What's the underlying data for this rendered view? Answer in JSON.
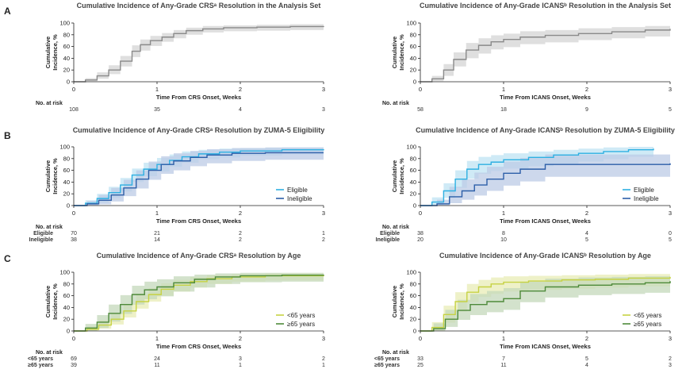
{
  "panel_letters": [
    "A",
    "B",
    "C"
  ],
  "colors": {
    "gray": "#8a8a8a",
    "gray_band": "#d4d4d4",
    "light_blue": "#2eb0e2",
    "light_blue_band": "#bfe3f3",
    "dark_blue": "#2c5ea8",
    "dark_blue_band": "#bccbe6",
    "yellow_green": "#c6d243",
    "yellow_green_band": "#e8ecb6",
    "dark_green": "#4e8a3a",
    "dark_green_band": "#c4d8bb"
  },
  "chart_data": [
    {
      "id": "A-CRS",
      "type": "line",
      "panel": "A",
      "title": "Cumulative Incidence of Any-Grade CRSᵃ Resolution in the Analysis Set",
      "xlabel": "Time From CRS Onset, Weeks",
      "ylabel": "Cumulative Incidence, %",
      "xlim": [
        0,
        3
      ],
      "ylim": [
        0,
        100
      ],
      "xticks": [
        "0",
        "1",
        "2",
        "3"
      ],
      "yticks": [
        "0",
        "20",
        "40",
        "60",
        "80",
        "100"
      ],
      "risk_header": "No. at risk",
      "risk_rows": [
        {
          "label": "",
          "color": "#333333",
          "values": [
            "108",
            "35",
            "4",
            "3"
          ]
        }
      ],
      "series": [
        {
          "color": "#8a8a8a",
          "band": "#d4d4d4",
          "x": [
            0,
            0.14,
            0.28,
            0.42,
            0.56,
            0.7,
            0.8,
            0.92,
            1.06,
            1.2,
            1.35,
            1.55,
            1.8,
            2.2,
            2.6,
            3.0
          ],
          "y": [
            0,
            3,
            10,
            20,
            35,
            52,
            63,
            70,
            76,
            82,
            87,
            90,
            92,
            93,
            94,
            95
          ],
          "lo": [
            0,
            1,
            5,
            13,
            26,
            42,
            53,
            61,
            68,
            74,
            80,
            84,
            86,
            87,
            88,
            89
          ],
          "hi": [
            0,
            6,
            16,
            28,
            44,
            62,
            72,
            78,
            83,
            88,
            92,
            95,
            96,
            97,
            98,
            98
          ]
        }
      ]
    },
    {
      "id": "A-ICANS",
      "type": "line",
      "panel": "A",
      "title": "Cumulative Incidence of Any-Grade ICANSᵇ Resolution in the Analysis Set",
      "xlabel": "Time From ICANS Onset, Weeks",
      "ylabel": "Cumulative Incidence, %",
      "xlim": [
        0,
        3
      ],
      "ylim": [
        0,
        100
      ],
      "xticks": [
        "0",
        "1",
        "2",
        "3"
      ],
      "yticks": [
        "0",
        "20",
        "40",
        "60",
        "80",
        "100"
      ],
      "risk_header": "No. at risk",
      "risk_rows": [
        {
          "label": "",
          "color": "#333333",
          "values": [
            "58",
            "18",
            "9",
            "5"
          ]
        }
      ],
      "series": [
        {
          "color": "#8a8a8a",
          "band": "#d4d4d4",
          "x": [
            0,
            0.14,
            0.28,
            0.4,
            0.55,
            0.7,
            0.85,
            1.0,
            1.2,
            1.5,
            1.9,
            2.3,
            2.7,
            3.0
          ],
          "y": [
            0,
            5,
            20,
            38,
            54,
            62,
            68,
            72,
            76,
            79,
            82,
            85,
            88,
            90
          ],
          "lo": [
            0,
            1,
            10,
            26,
            40,
            48,
            55,
            59,
            64,
            67,
            71,
            74,
            77,
            79
          ],
          "hi": [
            0,
            10,
            30,
            50,
            66,
            74,
            79,
            82,
            86,
            88,
            91,
            93,
            95,
            96
          ]
        }
      ]
    },
    {
      "id": "B-CRS",
      "type": "line",
      "panel": "B",
      "title": "Cumulative Incidence of Any-Grade CRSᵃ Resolution by ZUMA-5 Eligibility",
      "xlabel": "Time From CRS Onset, Weeks",
      "ylabel": "Cumulative Incidence, %",
      "xlim": [
        0,
        3
      ],
      "ylim": [
        0,
        100
      ],
      "xticks": [
        "0",
        "1",
        "2",
        "3"
      ],
      "yticks": [
        "0",
        "20",
        "40",
        "60",
        "80",
        "100"
      ],
      "legend": [
        "Eligible",
        "Ineligible"
      ],
      "risk_header": "No. at risk",
      "risk_rows": [
        {
          "label": "Eligible",
          "color": "#2eb0e2",
          "values": [
            "70",
            "21",
            "2",
            "1"
          ]
        },
        {
          "label": "Ineligible",
          "color": "#2c5ea8",
          "values": [
            "38",
            "14",
            "2",
            "2"
          ]
        }
      ],
      "series": [
        {
          "name": "Eligible",
          "color": "#2eb0e2",
          "band": "#bfe3f3",
          "x": [
            0,
            0.14,
            0.28,
            0.42,
            0.56,
            0.7,
            0.84,
            1.0,
            1.15,
            1.3,
            1.5,
            1.75,
            2.0,
            2.5,
            3.0
          ],
          "y": [
            0,
            4,
            12,
            22,
            35,
            52,
            62,
            70,
            77,
            83,
            88,
            91,
            93,
            95,
            96
          ],
          "lo": [
            0,
            1,
            5,
            13,
            24,
            40,
            50,
            58,
            66,
            73,
            79,
            82,
            85,
            87,
            88
          ],
          "hi": [
            0,
            9,
            20,
            32,
            47,
            63,
            73,
            81,
            87,
            92,
            95,
            97,
            98,
            99,
            99
          ]
        },
        {
          "name": "Ineligible",
          "color": "#2c5ea8",
          "band": "#bccbe6",
          "x": [
            0,
            0.16,
            0.3,
            0.45,
            0.6,
            0.75,
            0.9,
            1.05,
            1.2,
            1.4,
            1.6,
            1.9,
            2.3,
            3.0
          ],
          "y": [
            0,
            3,
            9,
            18,
            30,
            45,
            60,
            70,
            76,
            82,
            86,
            89,
            90,
            90
          ],
          "lo": [
            0,
            0,
            2,
            7,
            16,
            29,
            44,
            54,
            60,
            67,
            72,
            76,
            78,
            78
          ],
          "hi": [
            0,
            8,
            18,
            30,
            44,
            60,
            75,
            84,
            89,
            93,
            96,
            98,
            99,
            99
          ]
        }
      ]
    },
    {
      "id": "B-ICANS",
      "type": "line",
      "panel": "B",
      "title": "Cumulative Incidence of Any-Grade ICANSᵇ Resolution by ZUMA-5 Eligibility",
      "xlabel": "Time From ICANS Onset, Weeks",
      "ylabel": "Cumulative Incidence, %",
      "xlim": [
        0,
        3
      ],
      "ylim": [
        0,
        100
      ],
      "xticks": [
        "0",
        "1",
        "2",
        "3"
      ],
      "yticks": [
        "0",
        "20",
        "40",
        "60",
        "80",
        "100"
      ],
      "legend": [
        "Eligible",
        "Ineligible"
      ],
      "risk_header": "No. at risk",
      "risk_rows": [
        {
          "label": "Eligible",
          "color": "#2eb0e2",
          "values": [
            "38",
            "8",
            "4",
            "0"
          ]
        },
        {
          "label": "Ineligible",
          "color": "#2c5ea8",
          "values": [
            "20",
            "10",
            "5",
            "5"
          ]
        }
      ],
      "series": [
        {
          "name": "Eligible",
          "color": "#2eb0e2",
          "band": "#bfe3f3",
          "x": [
            0,
            0.14,
            0.28,
            0.42,
            0.56,
            0.7,
            0.85,
            1.0,
            1.3,
            1.6,
            1.9,
            2.2,
            2.5,
            2.8
          ],
          "y": [
            0,
            6,
            25,
            45,
            62,
            70,
            74,
            78,
            82,
            86,
            89,
            92,
            95,
            97
          ],
          "lo": [
            0,
            1,
            13,
            30,
            46,
            54,
            59,
            63,
            67,
            71,
            75,
            79,
            83,
            85
          ],
          "hi": [
            0,
            14,
            38,
            60,
            76,
            83,
            86,
            89,
            92,
            95,
            97,
            99,
            100,
            100
          ]
        },
        {
          "name": "Ineligible",
          "color": "#2c5ea8",
          "band": "#bccbe6",
          "x": [
            0,
            0.2,
            0.35,
            0.5,
            0.65,
            0.8,
            1.0,
            1.2,
            1.5,
            3.0
          ],
          "y": [
            0,
            3,
            15,
            25,
            35,
            45,
            55,
            62,
            70,
            72
          ],
          "lo": [
            0,
            0,
            4,
            10,
            17,
            25,
            34,
            41,
            49,
            51
          ],
          "hi": [
            0,
            10,
            32,
            45,
            56,
            66,
            75,
            81,
            87,
            88
          ]
        }
      ]
    },
    {
      "id": "C-CRS",
      "type": "line",
      "panel": "C",
      "title": "Cumulative Incidence of Any-Grade CRSᵃ Resolution by Age",
      "xlabel": "Time From CRS Onset, Weeks",
      "ylabel": "Cumulative Incidence, %",
      "xlim": [
        0,
        3
      ],
      "ylim": [
        0,
        100
      ],
      "xticks": [
        "0",
        "1",
        "2",
        "3"
      ],
      "yticks": [
        "0",
        "20",
        "40",
        "60",
        "80",
        "100"
      ],
      "legend": [
        "<65 years",
        "≥65 years"
      ],
      "risk_header": "No. at risk",
      "risk_rows": [
        {
          "label": "<65 years",
          "color": "#b4bf1f",
          "values": [
            "69",
            "24",
            "3",
            "2"
          ]
        },
        {
          "label": "≥65 years",
          "color": "#4e8a3a",
          "values": [
            "39",
            "11",
            "1",
            "1"
          ]
        }
      ],
      "series": [
        {
          "name": "<65 years",
          "color": "#c6d243",
          "band": "#e8ecb6",
          "x": [
            0,
            0.16,
            0.3,
            0.45,
            0.6,
            0.75,
            0.9,
            1.05,
            1.2,
            1.4,
            1.6,
            1.9,
            2.3,
            3.0
          ],
          "y": [
            0,
            3,
            10,
            20,
            34,
            50,
            62,
            71,
            78,
            84,
            89,
            92,
            94,
            95
          ],
          "lo": [
            0,
            0,
            4,
            11,
            23,
            38,
            50,
            60,
            67,
            74,
            80,
            84,
            86,
            87
          ],
          "hi": [
            0,
            8,
            18,
            30,
            46,
            62,
            73,
            81,
            87,
            92,
            95,
            97,
            98,
            99
          ]
        },
        {
          "name": "≥65 years",
          "color": "#4e8a3a",
          "band": "#c4d8bb",
          "x": [
            0,
            0.14,
            0.28,
            0.42,
            0.56,
            0.7,
            0.85,
            1.0,
            1.2,
            1.45,
            1.7,
            2.0,
            2.5,
            3.0
          ],
          "y": [
            0,
            5,
            15,
            30,
            45,
            62,
            70,
            75,
            82,
            88,
            92,
            94,
            95,
            96
          ],
          "lo": [
            0,
            0,
            5,
            16,
            29,
            45,
            54,
            59,
            67,
            74,
            80,
            83,
            84,
            85
          ],
          "hi": [
            0,
            12,
            27,
            45,
            61,
            77,
            84,
            88,
            93,
            96,
            98,
            99,
            99,
            99
          ]
        }
      ]
    },
    {
      "id": "C-ICANS",
      "type": "line",
      "panel": "C",
      "title": "Cumulative Incidence of Any-Grade ICANSᵇ Resolution by Age",
      "xlabel": "Time From ICANS Onset, Weeks",
      "ylabel": "Cumulative Incidence, %",
      "xlim": [
        0,
        3
      ],
      "ylim": [
        0,
        100
      ],
      "xticks": [
        "0",
        "1",
        "2",
        "3"
      ],
      "yticks": [
        "0",
        "20",
        "40",
        "60",
        "80",
        "100"
      ],
      "legend": [
        "<65 years",
        "≥65 years"
      ],
      "risk_header": "No. at risk",
      "risk_rows": [
        {
          "label": "<65 years",
          "color": "#b4bf1f",
          "values": [
            "33",
            "7",
            "5",
            "2"
          ]
        },
        {
          "label": "≥65 years",
          "color": "#4e8a3a",
          "values": [
            "25",
            "11",
            "4",
            "3"
          ]
        }
      ],
      "series": [
        {
          "name": "<65 years",
          "color": "#c6d243",
          "band": "#e8ecb6",
          "x": [
            0,
            0.14,
            0.28,
            0.42,
            0.56,
            0.7,
            0.85,
            1.0,
            1.3,
            1.7,
            2.1,
            2.5,
            3.0
          ],
          "y": [
            0,
            6,
            28,
            50,
            66,
            75,
            80,
            83,
            85,
            87,
            88,
            90,
            92
          ],
          "lo": [
            0,
            1,
            14,
            33,
            49,
            58,
            63,
            67,
            70,
            72,
            74,
            76,
            78
          ],
          "hi": [
            0,
            15,
            43,
            66,
            80,
            87,
            91,
            93,
            94,
            95,
            96,
            97,
            98
          ]
        },
        {
          "name": "≥65 years",
          "color": "#4e8a3a",
          "band": "#c4d8bb",
          "x": [
            0,
            0.16,
            0.3,
            0.45,
            0.6,
            0.8,
            1.0,
            1.2,
            1.5,
            1.9,
            2.3,
            2.7,
            3.0
          ],
          "y": [
            0,
            4,
            20,
            35,
            45,
            50,
            55,
            68,
            75,
            78,
            80,
            82,
            85
          ],
          "lo": [
            0,
            0,
            7,
            19,
            27,
            32,
            36,
            49,
            57,
            61,
            63,
            65,
            68
          ],
          "hi": [
            0,
            13,
            36,
            53,
            63,
            68,
            73,
            84,
            89,
            91,
            92,
            93,
            95
          ]
        }
      ]
    }
  ]
}
